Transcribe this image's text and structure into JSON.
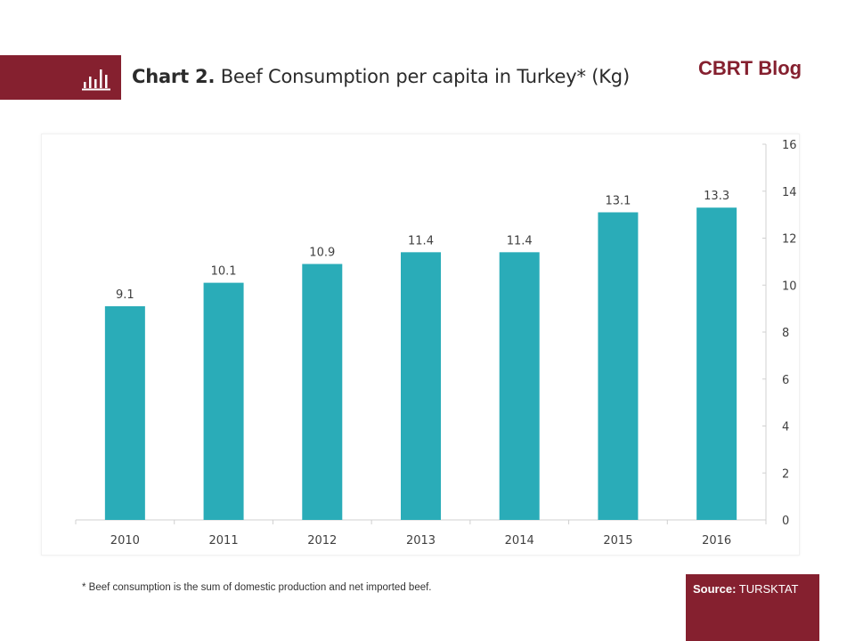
{
  "header": {
    "chart_label": "Chart 2.",
    "chart_title": "Beef Consumption per capita in Turkey* (Kg)",
    "brand": "CBRT Blog",
    "icon": "bar-chart-icon"
  },
  "footer": {
    "footnote": "* Beef consumption is the sum of domestic production and net imported beef.",
    "source_label": "Source:",
    "source_value": "TURSKTAT"
  },
  "colors": {
    "brand": "#85202f",
    "bar": "#2aacb8",
    "axis": "#d0d0d0",
    "text": "#404040"
  },
  "chart_data": {
    "type": "bar",
    "title": "Chart 2. Beef Consumption per capita in Turkey* (Kg)",
    "xlabel": "",
    "ylabel": "",
    "categories": [
      "2010",
      "2011",
      "2012",
      "2013",
      "2014",
      "2015",
      "2016"
    ],
    "values": [
      9.1,
      10.1,
      10.9,
      11.4,
      11.4,
      13.1,
      13.3
    ],
    "data_labels": [
      "9.1",
      "10.1",
      "10.9",
      "11.4",
      "11.4",
      "13.1",
      "13.3"
    ],
    "ylim": [
      0,
      16
    ],
    "yticks": [
      0,
      2,
      4,
      6,
      8,
      10,
      12,
      14,
      16
    ],
    "y_axis_side": "right",
    "grid": false,
    "legend": "none"
  }
}
